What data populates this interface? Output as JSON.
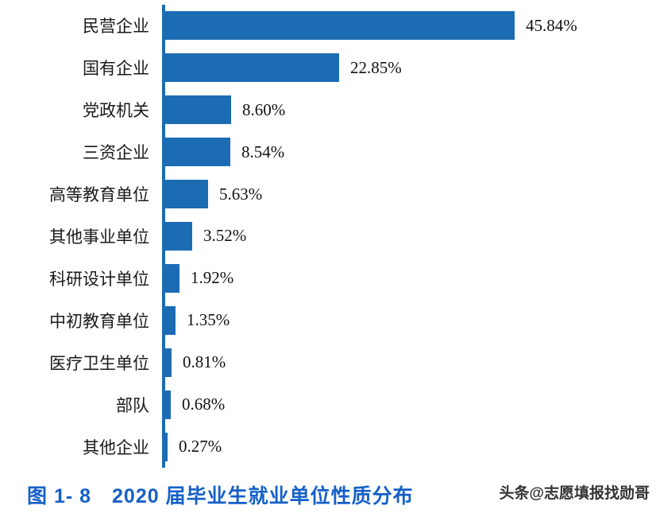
{
  "chart_data": {
    "type": "bar",
    "orientation": "horizontal",
    "categories": [
      "民营企业",
      "国有企业",
      "党政机关",
      "三资企业",
      "高等教育单位",
      "其他事业单位",
      "科研设计单位",
      "中初教育单位",
      "医疗卫生单位",
      "部队",
      "其他企业"
    ],
    "values": [
      45.84,
      22.85,
      8.6,
      8.54,
      5.63,
      3.52,
      1.92,
      1.35,
      0.81,
      0.68,
      0.27
    ],
    "value_labels": [
      "45.84%",
      "22.85%",
      "8.60%",
      "8.54%",
      "5.63%",
      "3.52%",
      "1.92%",
      "1.35%",
      "0.81%",
      "0.68%",
      "0.27%"
    ],
    "title": "图 1- 8　2020 届毕业生就业单位性质分布",
    "xlabel": "",
    "ylabel": "",
    "xlim": [
      0,
      50
    ],
    "grid": false,
    "legend": "none",
    "bar_color": "#1c6cb4"
  },
  "caption": "图 1- 8　2020 届毕业生就业单位性质分布",
  "watermark": "头条@志愿填报找勋哥",
  "colors": {
    "bar": "#1c6cb4",
    "axis_line": "#1c6cb4",
    "caption_text": "#1560c8",
    "watermark_text": "#333333",
    "background": "#ffffff"
  }
}
